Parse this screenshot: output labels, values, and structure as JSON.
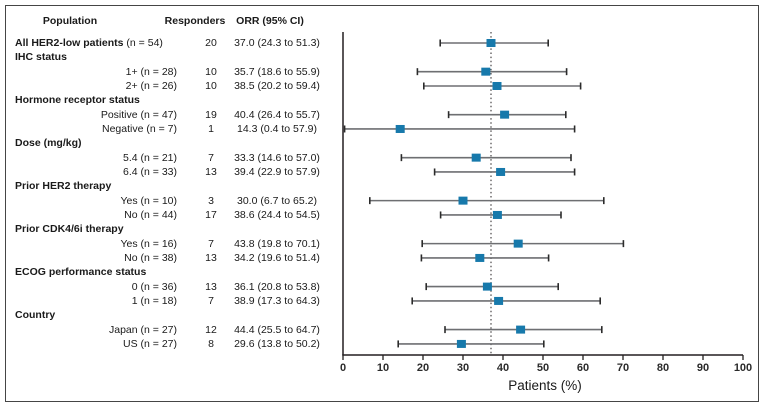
{
  "chart_data": {
    "type": "forest",
    "columns": {
      "population": "Population",
      "responders": "Responders",
      "orr": "ORR (95% CI)"
    },
    "xlabel": "Patients (%)",
    "xlim": [
      0,
      100
    ],
    "xticks": [
      0,
      10,
      20,
      30,
      40,
      50,
      60,
      70,
      80,
      90,
      100
    ],
    "reference_line": 37.0,
    "grid": false,
    "legend": "none",
    "rows": [
      {
        "kind": "data",
        "label_bold": "All HER2-low patients",
        "label_rest": "(n = 54)",
        "responders": "20",
        "orr": "37.0 (24.3 to 51.3)",
        "est": 37.0,
        "lo": 24.3,
        "hi": 51.3
      },
      {
        "kind": "group",
        "label": "IHC status"
      },
      {
        "kind": "data",
        "label": "1+ (n = 28)",
        "responders": "10",
        "orr": "35.7 (18.6 to 55.9)",
        "est": 35.7,
        "lo": 18.6,
        "hi": 55.9
      },
      {
        "kind": "data",
        "label": "2+ (n = 26)",
        "responders": "10",
        "orr": "38.5 (20.2 to 59.4)",
        "est": 38.5,
        "lo": 20.2,
        "hi": 59.4
      },
      {
        "kind": "group",
        "label": "Hormone receptor status"
      },
      {
        "kind": "data",
        "label": "Positive (n = 47)",
        "responders": "19",
        "orr": "40.4 (26.4 to 55.7)",
        "est": 40.4,
        "lo": 26.4,
        "hi": 55.7
      },
      {
        "kind": "data",
        "label": "Negative (n = 7)",
        "responders": "1",
        "orr": "14.3 (0.4 to 57.9)",
        "est": 14.3,
        "lo": 0.4,
        "hi": 57.9
      },
      {
        "kind": "group",
        "label": "Dose (mg/kg)"
      },
      {
        "kind": "data",
        "label": "5.4 (n = 21)",
        "responders": "7",
        "orr": "33.3 (14.6 to 57.0)",
        "est": 33.3,
        "lo": 14.6,
        "hi": 57.0
      },
      {
        "kind": "data",
        "label": "6.4 (n = 33)",
        "responders": "13",
        "orr": "39.4 (22.9 to 57.9)",
        "est": 39.4,
        "lo": 22.9,
        "hi": 57.9
      },
      {
        "kind": "group",
        "label": "Prior HER2 therapy"
      },
      {
        "kind": "data",
        "label": "Yes (n = 10)",
        "responders": "3",
        "orr": "30.0 (6.7 to 65.2)",
        "est": 30.0,
        "lo": 6.7,
        "hi": 65.2
      },
      {
        "kind": "data",
        "label": "No (n = 44)",
        "responders": "17",
        "orr": "38.6 (24.4 to 54.5)",
        "est": 38.6,
        "lo": 24.4,
        "hi": 54.5
      },
      {
        "kind": "group",
        "label": "Prior CDK4/6i therapy"
      },
      {
        "kind": "data",
        "label": "Yes (n = 16)",
        "responders": "7",
        "orr": "43.8 (19.8 to 70.1)",
        "est": 43.8,
        "lo": 19.8,
        "hi": 70.1
      },
      {
        "kind": "data",
        "label": "No (n = 38)",
        "responders": "13",
        "orr": "34.2 (19.6 to 51.4)",
        "est": 34.2,
        "lo": 19.6,
        "hi": 51.4
      },
      {
        "kind": "group",
        "label": "ECOG performance status"
      },
      {
        "kind": "data",
        "label": "0 (n = 36)",
        "responders": "13",
        "orr": "36.1 (20.8 to 53.8)",
        "est": 36.1,
        "lo": 20.8,
        "hi": 53.8
      },
      {
        "kind": "data",
        "label": "1 (n = 18)",
        "responders": "7",
        "orr": "38.9 (17.3 to 64.3)",
        "est": 38.9,
        "lo": 17.3,
        "hi": 64.3
      },
      {
        "kind": "group",
        "label": "Country"
      },
      {
        "kind": "data",
        "label": "Japan (n = 27)",
        "responders": "12",
        "orr": "44.4 (25.5 to 64.7)",
        "est": 44.4,
        "lo": 25.5,
        "hi": 64.7
      },
      {
        "kind": "data",
        "label": "US (n = 27)",
        "responders": "8",
        "orr": "29.6 (13.8 to 50.2)",
        "est": 29.6,
        "lo": 13.8,
        "hi": 50.2
      }
    ],
    "colors": {
      "marker": "#1779ab",
      "ci_line": "#6e6f72",
      "ci_cap": "#2b2b2b",
      "axis": "#231f20",
      "ref_line": "#231f20",
      "text": "#1a1a1a"
    }
  }
}
